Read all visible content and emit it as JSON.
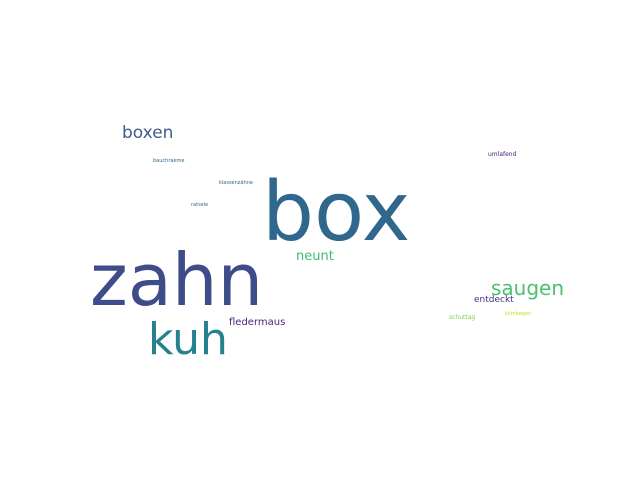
{
  "words": {
    "box": {
      "text": "box",
      "color": "#30678d"
    },
    "zahn": {
      "text": "zahn",
      "color": "#3e4c8a"
    },
    "kuh": {
      "text": "kuh",
      "color": "#26818e"
    },
    "boxen": {
      "text": "boxen",
      "color": "#3e5b8a"
    },
    "saugen": {
      "text": "saugen",
      "color": "#4ac16d"
    },
    "neunt": {
      "text": "neunt",
      "color": "#3dbc74"
    },
    "fledermaus": {
      "text": "fledermaus",
      "color": "#482576"
    },
    "entdeckt": {
      "text": "entdeckt",
      "color": "#46307e"
    },
    "schuetteg": {
      "text": "schuttag",
      "color": "#7ad151"
    },
    "klimbegen": {
      "text": "klimbegen",
      "color": "#c2df23"
    },
    "umlafend": {
      "text": "umlafend",
      "color": "#482374"
    },
    "bauchraeume": {
      "text": "bauchraeme",
      "color": "#31688e"
    },
    "klassenzahne": {
      "text": "klassenzähne",
      "color": "#31688e"
    },
    "ratsele": {
      "text": "ratsele",
      "color": "#2c728e"
    }
  }
}
